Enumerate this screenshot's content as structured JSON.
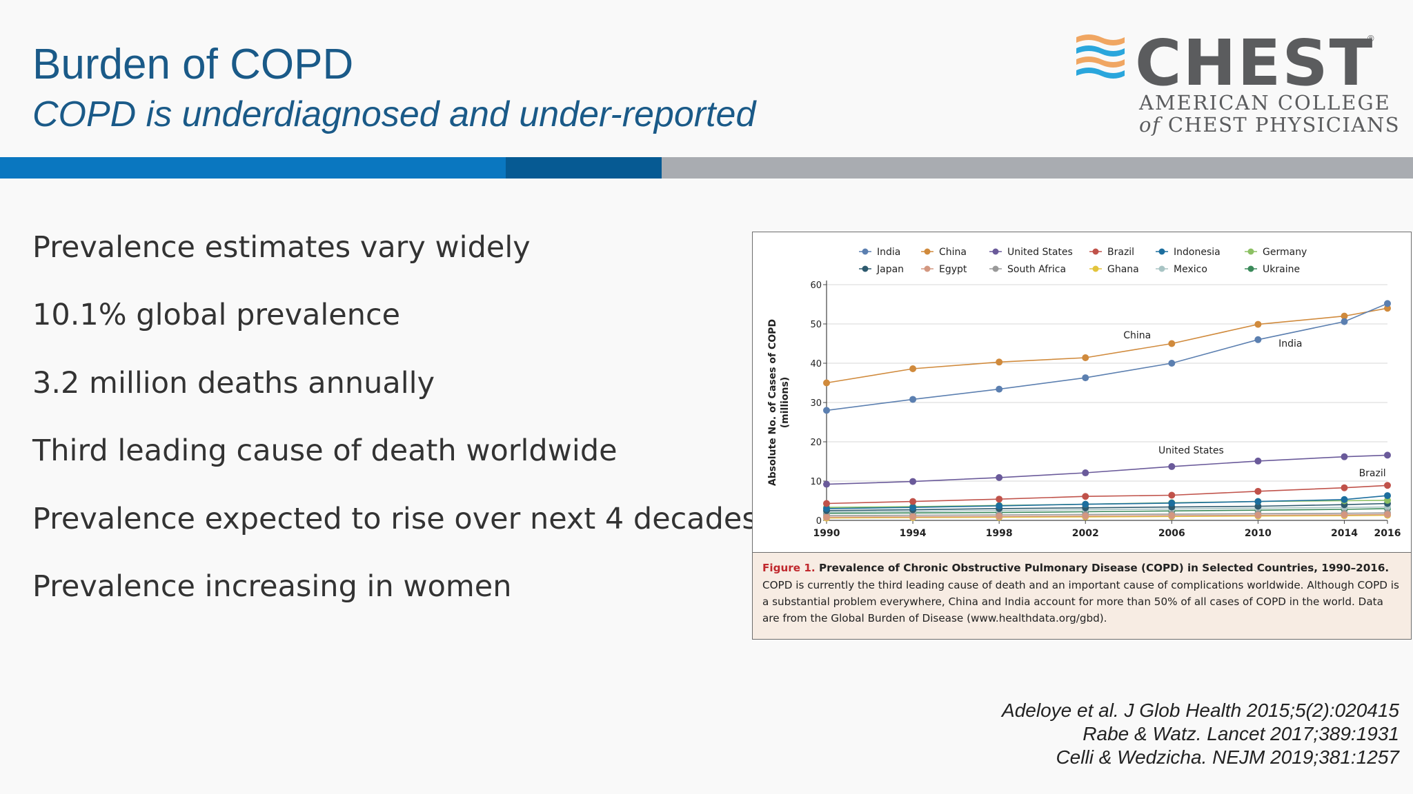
{
  "header": {
    "title": "Burden of COPD",
    "subtitle": "COPD is underdiagnosed and under-reported",
    "logo": {
      "wordmark": "CHEST",
      "registered": "®",
      "line1": "AMERICAN COLLEGE",
      "line2_prefix": "of",
      "line2_rest": "CHEST PHYSICIANS"
    }
  },
  "colors": {
    "title_blue": "#1a5a88",
    "band_blue": "#0a77c0",
    "band_dark_blue": "#065a93",
    "band_gray": "#a9acb1"
  },
  "bullets": [
    "Prevalence estimates vary widely",
    "10.1% global prevalence",
    "3.2 million deaths annually",
    "Third leading cause of death worldwide",
    "Prevalence expected to rise over next 4 decades",
    "Prevalence increasing in women"
  ],
  "figure_caption": {
    "label": "Figure 1.",
    "title": "Prevalence of Chronic Obstructive Pulmonary Disease (COPD) in Selected Countries, 1990–2016.",
    "body": "COPD is currently the third leading cause of death and an important cause of complications worldwide. Although COPD is a substantial problem everywhere, China and India account for more than 50% of all cases of COPD in the world. Data are from the Global Burden of Disease (www.healthdata.org/gbd)."
  },
  "references": [
    "Adeloye et al. J Glob Health 2015;5(2):020415",
    "Rabe & Watz. Lancet 2017;389:1931",
    "Celli & Wedzicha. NEJM 2019;381:1257"
  ],
  "chart_data": {
    "type": "line",
    "ylabel": "Absolute No. of Cases of COPD (millions)",
    "ylabel_line1": "Absolute No. of Cases of COPD",
    "ylabel_line2": "(millions)",
    "xlabel": "",
    "x": [
      "1990",
      "1994",
      "1998",
      "2002",
      "2006",
      "2010",
      "2014",
      "2016"
    ],
    "ylim": [
      0,
      60
    ],
    "yticks": [
      0,
      10,
      20,
      30,
      40,
      50,
      60
    ],
    "grid": true,
    "legend_position": "top",
    "series": [
      {
        "name": "India",
        "color": "#5b7fb0",
        "values": [
          28,
          30.8,
          33.4,
          36.3,
          40,
          46,
          50.6,
          55.2
        ]
      },
      {
        "name": "China",
        "color": "#d08a3c",
        "values": [
          35,
          38.6,
          40.3,
          41.4,
          45,
          49.9,
          52,
          54
        ]
      },
      {
        "name": "United States",
        "color": "#6a5a9a",
        "values": [
          9.2,
          9.9,
          10.9,
          12.1,
          13.7,
          15.1,
          16.2,
          16.6
        ]
      },
      {
        "name": "Brazil",
        "color": "#c0524a",
        "values": [
          4.3,
          4.8,
          5.4,
          6.1,
          6.4,
          7.4,
          8.3,
          8.9
        ]
      },
      {
        "name": "Indonesia",
        "color": "#1c6e9e",
        "values": [
          3,
          3.3,
          3.7,
          4.1,
          4.4,
          4.8,
          5.3,
          6.3
        ]
      },
      {
        "name": "Germany",
        "color": "#8cc063",
        "values": [
          3.3,
          3.5,
          3.8,
          4.1,
          4.5,
          4.8,
          5,
          5.1
        ]
      },
      {
        "name": "Japan",
        "color": "#2d5a6e",
        "values": [
          2.5,
          2.7,
          3,
          3.2,
          3.4,
          3.6,
          4,
          4.3
        ]
      },
      {
        "name": "Egypt",
        "color": "#d39780",
        "values": [
          0.8,
          0.9,
          1,
          1.1,
          1.2,
          1.3,
          1.4,
          1.5
        ]
      },
      {
        "name": "South Africa",
        "color": "#999999",
        "values": [
          1.2,
          1.3,
          1.4,
          1.5,
          1.6,
          1.7,
          1.8,
          1.9
        ]
      },
      {
        "name": "Ghana",
        "color": "#e3c43c",
        "values": [
          0.6,
          0.7,
          0.8,
          0.9,
          1,
          1.1,
          1.2,
          1.3
        ]
      },
      {
        "name": "Mexico",
        "color": "#a8c4c4",
        "values": [
          2.1,
          2.3,
          2.5,
          2.7,
          2.9,
          3.1,
          3.3,
          3.4
        ]
      },
      {
        "name": "Ukraine",
        "color": "#3a8a5a",
        "values": [
          1.8,
          1.9,
          2,
          2.2,
          2.4,
          2.6,
          2.8,
          3
        ]
      }
    ],
    "annotations": [
      {
        "text": "China",
        "x": "2004.4",
        "y": 46.3
      },
      {
        "text": "India",
        "x": "2011.5",
        "y": 44.2
      },
      {
        "text": "United States",
        "x": "2006.9",
        "y": 17
      },
      {
        "text": "Brazil",
        "x": "2015.3",
        "y": 11.2
      }
    ]
  }
}
